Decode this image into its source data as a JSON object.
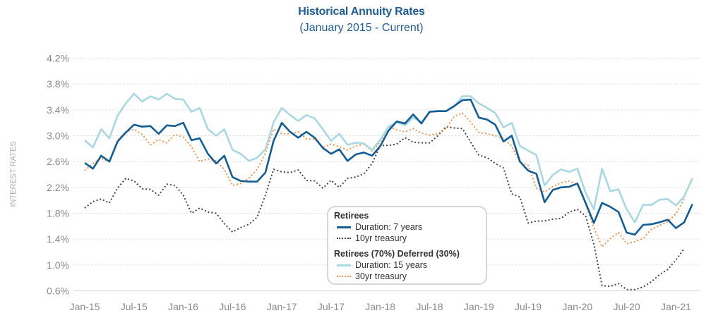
{
  "chart_data": {
    "type": "line",
    "title": "Historical Annuity Rates",
    "subtitle": "(January 2015 - Current)",
    "xlabel": "",
    "ylabel": "INTEREST RATES",
    "ylim": [
      0.6,
      4.2
    ],
    "yticks": [
      "4.2%",
      "3.8%",
      "3.4%",
      "3.0%",
      "2.6%",
      "2.2%",
      "1.8%",
      "1.4%",
      "1.0%",
      "0.6%"
    ],
    "ytick_values": [
      4.2,
      3.8,
      3.4,
      3.0,
      2.6,
      2.2,
      1.8,
      1.4,
      1.0,
      0.6
    ],
    "xticks": [
      "Jan-15",
      "Jul-15",
      "Jan-16",
      "Jul-16",
      "Jan-17",
      "Jul-17",
      "Jan-18",
      "Jul-18",
      "Jan-19",
      "Jul-19",
      "Jan-20",
      "Jul-20",
      "Jan-21"
    ],
    "xtick_month_index": [
      0,
      6,
      12,
      18,
      24,
      30,
      36,
      42,
      48,
      54,
      60,
      66,
      72
    ],
    "x_unit": "monthly, starting Jan-2015",
    "grid": "horizontal dashed",
    "legend_position": "bottom-center",
    "legend_groups": [
      {
        "heading": "Retirees",
        "items": [
          "Duration: 7 years",
          "10yr treasury"
        ]
      },
      {
        "heading": "Retirees (70%) Deferred (30%)",
        "items": [
          "Duration: 15 years",
          "30yr treasury"
        ]
      }
    ],
    "series": [
      {
        "name": "Duration: 7 years",
        "group": "Retirees",
        "color": "#135d96",
        "style": "solid",
        "values": [
          2.58,
          2.49,
          2.69,
          2.6,
          2.91,
          3.05,
          3.17,
          3.14,
          3.15,
          3.03,
          3.16,
          3.15,
          3.2,
          2.93,
          2.96,
          2.72,
          2.57,
          2.69,
          2.36,
          2.3,
          2.29,
          2.29,
          2.43,
          2.92,
          3.2,
          3.06,
          2.97,
          3.06,
          2.97,
          2.81,
          2.72,
          2.79,
          2.61,
          2.71,
          2.74,
          2.69,
          2.84,
          3.08,
          3.22,
          3.19,
          3.33,
          3.19,
          3.37,
          3.38,
          3.38,
          3.46,
          3.55,
          3.56,
          3.28,
          3.25,
          3.17,
          2.91,
          3.0,
          2.6,
          2.46,
          2.41,
          1.97,
          2.16,
          2.2,
          2.21,
          2.26,
          1.96,
          1.65,
          1.96,
          1.9,
          1.82,
          1.5,
          1.47,
          1.62,
          1.63,
          1.66,
          1.7,
          1.57,
          1.66,
          1.94
        ]
      },
      {
        "name": "10yr treasury",
        "group": "Retirees",
        "color": "#444444",
        "style": "dotted",
        "values": [
          1.88,
          1.98,
          2.02,
          1.96,
          2.19,
          2.34,
          2.3,
          2.18,
          2.17,
          2.08,
          2.25,
          2.23,
          2.08,
          1.8,
          1.88,
          1.82,
          1.8,
          1.64,
          1.51,
          1.58,
          1.63,
          1.74,
          2.08,
          2.48,
          2.44,
          2.43,
          2.47,
          2.31,
          2.3,
          2.19,
          2.31,
          2.2,
          2.34,
          2.36,
          2.41,
          2.57,
          2.85,
          2.85,
          2.87,
          2.97,
          2.9,
          2.89,
          2.89,
          3.0,
          3.14,
          3.12,
          3.11,
          2.9,
          2.7,
          2.66,
          2.57,
          2.5,
          2.1,
          2.05,
          1.65,
          1.68,
          1.68,
          1.71,
          1.72,
          1.82,
          1.86,
          1.76,
          1.32,
          0.68,
          0.67,
          0.71,
          0.62,
          0.62,
          0.66,
          0.74,
          0.85,
          0.93,
          1.08,
          1.25,
          null
        ]
      },
      {
        "name": "Duration: 15 years",
        "group": "Retirees (70%) Deferred (30%)",
        "color": "#a9d8e2",
        "style": "solid",
        "values": [
          2.93,
          2.82,
          3.1,
          2.96,
          3.31,
          3.5,
          3.65,
          3.53,
          3.61,
          3.56,
          3.65,
          3.57,
          3.56,
          3.37,
          3.43,
          3.1,
          3.0,
          3.1,
          2.78,
          2.72,
          2.61,
          2.66,
          2.79,
          3.21,
          3.43,
          3.32,
          3.23,
          3.32,
          3.27,
          3.1,
          2.92,
          3.03,
          2.86,
          2.89,
          2.88,
          2.78,
          2.94,
          3.14,
          3.21,
          3.16,
          3.28,
          3.21,
          3.37,
          3.38,
          3.38,
          3.45,
          3.61,
          3.61,
          3.5,
          3.43,
          3.35,
          3.13,
          3.2,
          2.84,
          2.77,
          2.7,
          2.23,
          2.39,
          2.48,
          2.44,
          2.49,
          2.12,
          1.86,
          2.49,
          2.14,
          2.17,
          1.86,
          1.66,
          1.93,
          1.93,
          2.01,
          2.02,
          1.92,
          2.06,
          2.34
        ]
      },
      {
        "name": "30yr treasury",
        "group": "Retirees (70%) Deferred (30%)",
        "color": "#f0924a",
        "style": "dotted",
        "values": [
          2.46,
          2.57,
          2.65,
          2.6,
          2.93,
          3.06,
          3.1,
          3.02,
          2.86,
          2.94,
          2.89,
          3.02,
          2.98,
          2.83,
          2.6,
          2.64,
          2.61,
          2.48,
          2.23,
          2.26,
          2.34,
          2.48,
          2.73,
          3.1,
          3.03,
          3.03,
          3.06,
          2.95,
          2.95,
          2.82,
          2.87,
          2.83,
          2.78,
          2.84,
          2.87,
          2.76,
          2.9,
          3.14,
          3.09,
          3.06,
          3.11,
          3.04,
          3.01,
          3.03,
          3.11,
          3.3,
          3.35,
          3.21,
          3.05,
          3.03,
          3.0,
          2.95,
          2.84,
          2.59,
          2.54,
          2.19,
          2.13,
          2.21,
          2.27,
          2.3,
          2.24,
          1.94,
          1.58,
          1.28,
          1.41,
          1.5,
          1.33,
          1.36,
          1.41,
          1.55,
          1.61,
          1.67,
          1.79,
          2.02,
          null
        ]
      }
    ]
  }
}
